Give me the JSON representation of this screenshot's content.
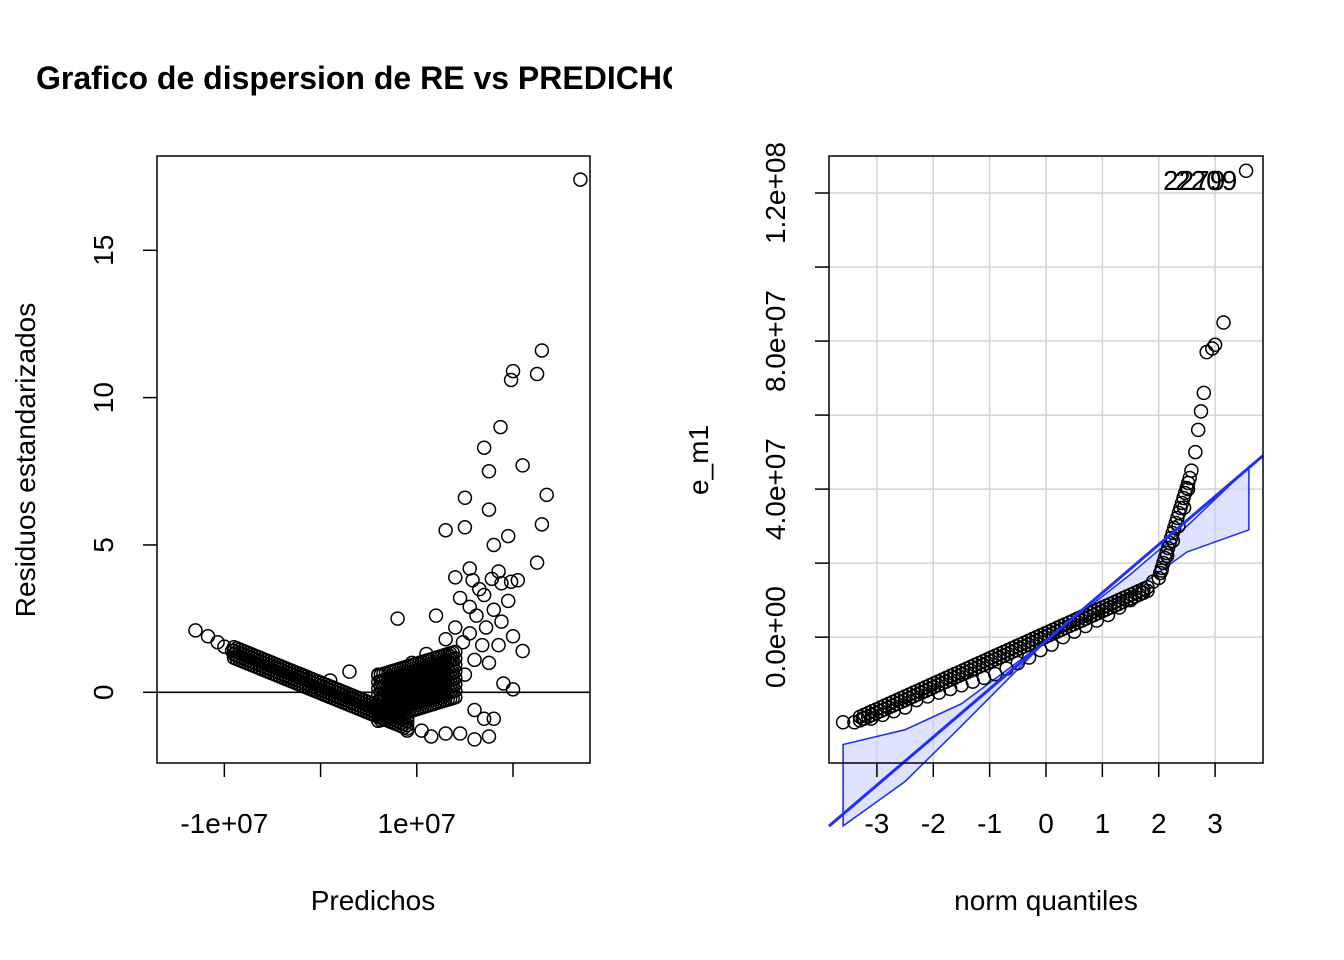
{
  "chart_data": [
    {
      "type": "scatter",
      "title": "Grafico de dispersion de RE vs PREDICHOS",
      "xlabel": "Predichos",
      "ylabel": "Residuos estandarizados",
      "xlim": [
        -17000000.0,
        28000000.0
      ],
      "ylim": [
        -2.4,
        18.2
      ],
      "x_ticks": [
        -10000000.0,
        0,
        10000000.0,
        20000000.0
      ],
      "x_tick_labels": [
        "-1e+07",
        "",
        "1e+07",
        ""
      ],
      "y_ticks": [
        0,
        5,
        10,
        15
      ],
      "y_tick_labels": [
        "0",
        "5",
        "10",
        "15"
      ],
      "reference_line": {
        "orientation": "horizontal",
        "y": 0
      },
      "grid": false,
      "points": [
        [
          -13000000.0,
          2.1
        ],
        [
          -11700000.0,
          1.9
        ],
        [
          -10700000.0,
          1.7
        ],
        [
          -10000000.0,
          1.55
        ],
        [
          -9200000.0,
          1.4
        ],
        [
          27000000.0,
          17.4
        ],
        [
          23000000.0,
          11.6
        ],
        [
          22500000.0,
          10.8
        ],
        [
          20000000.0,
          10.9
        ],
        [
          19800000.0,
          10.6
        ],
        [
          18700000.0,
          9.0
        ],
        [
          21000000.0,
          7.7
        ],
        [
          17000000.0,
          8.3
        ],
        [
          17500000.0,
          7.5
        ],
        [
          23500000.0,
          6.7
        ],
        [
          15000000.0,
          6.6
        ],
        [
          17500000.0,
          6.2
        ],
        [
          15000000.0,
          5.6
        ],
        [
          13000000.0,
          5.5
        ],
        [
          23000000.0,
          5.7
        ],
        [
          19500000.0,
          5.3
        ],
        [
          18000000.0,
          5.0
        ],
        [
          22500000.0,
          4.4
        ],
        [
          15500000.0,
          4.2
        ],
        [
          18500000.0,
          4.1
        ],
        [
          14000000.0,
          3.9
        ],
        [
          15800000.0,
          3.8
        ],
        [
          17800000.0,
          3.85
        ],
        [
          20500000.0,
          3.8
        ],
        [
          19800000.0,
          3.75
        ],
        [
          16500000.0,
          3.5
        ],
        [
          18800000.0,
          3.7
        ],
        [
          14500000.0,
          3.2
        ],
        [
          17000000.0,
          3.3
        ],
        [
          19500000.0,
          3.1
        ],
        [
          15500000.0,
          2.9
        ],
        [
          18000000.0,
          2.8
        ],
        [
          16200000.0,
          2.6
        ],
        [
          8000000.0,
          2.5
        ],
        [
          12000000.0,
          2.6
        ],
        [
          14000000.0,
          2.2
        ],
        [
          15500000.0,
          2.0
        ],
        [
          17200000.0,
          2.2
        ],
        [
          18800000.0,
          2.4
        ],
        [
          20000000.0,
          1.9
        ],
        [
          13000000.0,
          1.8
        ],
        [
          14800000.0,
          1.7
        ],
        [
          16800000.0,
          1.6
        ],
        [
          18500000.0,
          1.6
        ],
        [
          11000000.0,
          1.3
        ],
        [
          13500000.0,
          1.2
        ],
        [
          16000000.0,
          1.1
        ],
        [
          17500000.0,
          1.0
        ],
        [
          9500000.0,
          1.0
        ],
        [
          12500000.0,
          0.8
        ],
        [
          15000000.0,
          0.6
        ],
        [
          19000000.0,
          0.3
        ],
        [
          20000000.0,
          0.1
        ],
        [
          21000000.0,
          1.4
        ],
        [
          16000000.0,
          -0.6
        ],
        [
          17000000.0,
          -0.9
        ],
        [
          18000000.0,
          -0.9
        ],
        [
          17500000.0,
          -1.5
        ],
        [
          16000000.0,
          -1.6
        ],
        [
          14500000.0,
          -1.4
        ],
        [
          13000000.0,
          -1.4
        ],
        [
          11500000.0,
          -1.5
        ],
        [
          10500000.0,
          -1.3
        ],
        [
          9000000.0,
          -1.3
        ],
        [
          6000000.0,
          0.6
        ],
        [
          7500000.0,
          0.5
        ],
        [
          3000000.0,
          0.7
        ],
        [
          1000000.0,
          0.4
        ],
        [
          -2000000.0,
          0.6
        ]
      ]
    },
    {
      "type": "scatter",
      "title": "",
      "xlabel": "norm quantiles",
      "ylabel": "e_m1",
      "xlim": [
        -3.85,
        3.85
      ],
      "ylim": [
        -34000000.0,
        130000000.0
      ],
      "x_ticks": [
        -3,
        -2,
        -1,
        0,
        1,
        2,
        3
      ],
      "x_tick_labels": [
        "-3",
        "-2",
        "-1",
        "0",
        "1",
        "2",
        "3"
      ],
      "y_ticks": [
        0,
        20000000,
        40000000,
        60000000,
        80000000,
        100000000,
        120000000
      ],
      "y_tick_labels": [
        "0.0e+00",
        "",
        "4.0e+07",
        "",
        "8.0e+07",
        "",
        "1.2e+08"
      ],
      "grid": true,
      "point_labels": [
        "2279",
        "2209"
      ],
      "reference_line": {
        "intercept": -1000000.0,
        "slope": 13000000.0
      },
      "confidence_envelope": {
        "x": [
          -3.6,
          -2.5,
          -1.5,
          0,
          1.5,
          2.5,
          3.6
        ],
        "upper": [
          -29000000.0,
          -25000000.0,
          -18000000.0,
          -1000000.0,
          17000000.0,
          30000000.0,
          46000000.0
        ],
        "lower": [
          -51000000.0,
          -39000000.0,
          -24000000.0,
          -1000000.0,
          12000000.0,
          23000000.0,
          29000000.0
        ]
      },
      "points": [
        [
          -3.6,
          -23000000.0
        ],
        [
          -3.4,
          -23000000.0
        ],
        [
          -3.25,
          -22000000.0
        ],
        [
          -3.1,
          -22000000.0
        ],
        [
          -2.9,
          -21000000.0
        ],
        [
          -2.7,
          -20000000.0
        ],
        [
          -2.5,
          -19000000.0
        ],
        [
          -2.3,
          -17000000.0
        ],
        [
          -2.1,
          -16000000.0
        ],
        [
          -1.9,
          -15000000.0
        ],
        [
          -1.7,
          -14000000.0
        ],
        [
          -1.5,
          -13000000.0
        ],
        [
          -1.3,
          -12000000.0
        ],
        [
          -1.1,
          -11000000.0
        ],
        [
          -0.9,
          -10000000.0
        ],
        [
          -0.7,
          -8500000.0
        ],
        [
          -0.5,
          -7000000.0
        ],
        [
          -0.3,
          -5500000.0
        ],
        [
          -0.1,
          -3500000.0
        ],
        [
          0.1,
          -2000000.0
        ],
        [
          0.3,
          0.0
        ],
        [
          0.5,
          1500000.0
        ],
        [
          0.7,
          3000000.0
        ],
        [
          0.9,
          4500000.0
        ],
        [
          1.1,
          6000000.0
        ],
        [
          1.3,
          8000000.0
        ],
        [
          1.5,
          10000000.0
        ],
        [
          1.7,
          12000000.0
        ],
        [
          1.9,
          15000000.0
        ],
        [
          2.05,
          18000000.0
        ],
        [
          2.15,
          22000000.0
        ],
        [
          2.25,
          26000000.0
        ],
        [
          2.35,
          30000000.0
        ],
        [
          2.45,
          35000000.0
        ],
        [
          2.52,
          40000000.0
        ],
        [
          2.58,
          45000000.0
        ],
        [
          2.65,
          50000000.0
        ],
        [
          2.7,
          56000000.0
        ],
        [
          2.75,
          61000000.0
        ],
        [
          2.8,
          66000000.0
        ],
        [
          2.85,
          77000000.0
        ],
        [
          2.95,
          78000000.0
        ],
        [
          3.0,
          79000000.0
        ],
        [
          3.15,
          85000000.0
        ],
        [
          3.55,
          126000000.0
        ]
      ]
    }
  ]
}
